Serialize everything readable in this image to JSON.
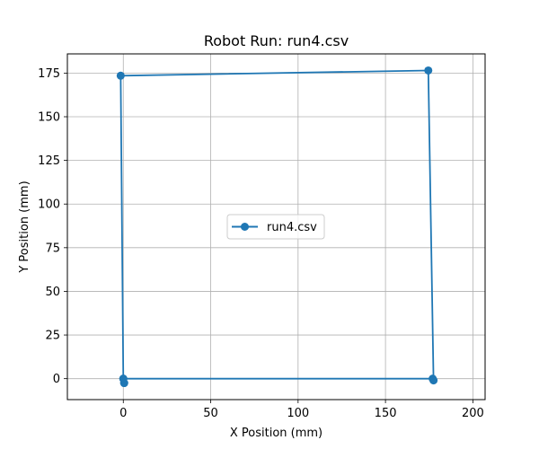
{
  "chart_data": {
    "type": "line",
    "title": "Robot Run: run4.csv",
    "xlabel": "X Position (mm)",
    "ylabel": "Y Position (mm)",
    "xlim": [
      -32,
      207
    ],
    "ylim": [
      -12,
      186
    ],
    "xticks": [
      0,
      50,
      100,
      150,
      200
    ],
    "yticks": [
      0,
      25,
      50,
      75,
      100,
      125,
      150,
      175
    ],
    "grid": true,
    "legend_position": "center",
    "series": [
      {
        "name": "run4.csv",
        "color": "#1f77b4",
        "marker": "circle",
        "points": [
          {
            "x": 0.5,
            "y": -2.5
          },
          {
            "x": 0,
            "y": 0
          },
          {
            "x": 177,
            "y": 0
          },
          {
            "x": 177.5,
            "y": -1
          },
          {
            "x": 174.5,
            "y": 176.5
          },
          {
            "x": -1.5,
            "y": 173.5
          },
          {
            "x": 0,
            "y": 0
          },
          {
            "x": 0.5,
            "y": -2.5
          }
        ]
      }
    ]
  }
}
